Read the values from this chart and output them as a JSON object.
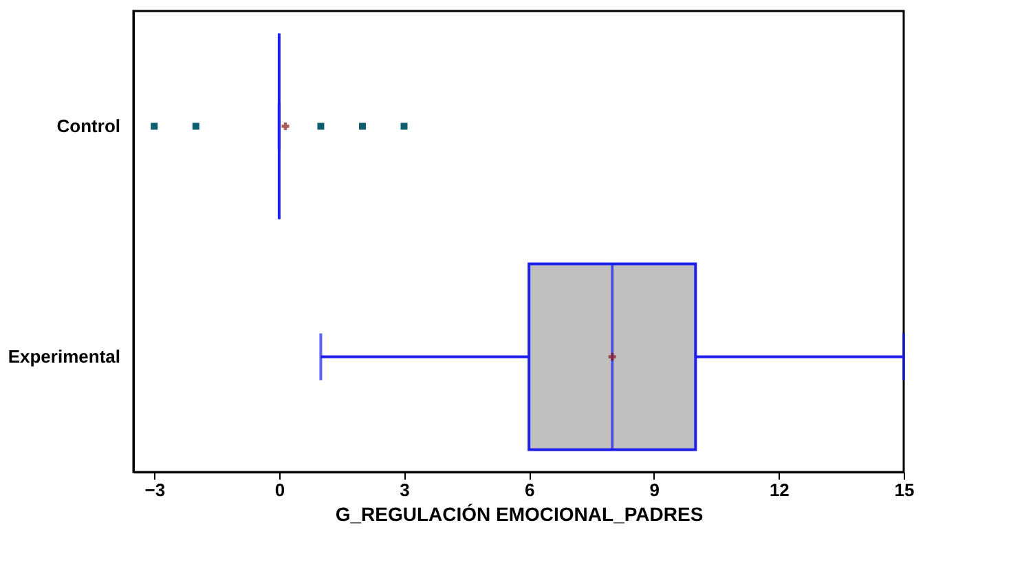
{
  "chart_data": {
    "type": "box",
    "orientation": "horizontal",
    "xlabel": "G_REGULACIÓN EMOCIONAL_PADRES",
    "categories": [
      "Control",
      "Experimental"
    ],
    "colors": [
      "#2020ee",
      "#c0c0c0"
    ],
    "boxes": [
      {
        "low": 0,
        "q1": 0,
        "median": 0,
        "q3": 0,
        "high": 0,
        "mean": 0.15,
        "outliers": [
          -3,
          -2,
          1,
          2,
          3
        ]
      },
      {
        "low": 1,
        "q1": 6,
        "median": 8,
        "q3": 10,
        "high": 15,
        "mean": 8
      }
    ],
    "xlim": [
      -3.5,
      15
    ],
    "xticks": [
      -3,
      0,
      3,
      6,
      9,
      12,
      15
    ],
    "grid": false
  }
}
